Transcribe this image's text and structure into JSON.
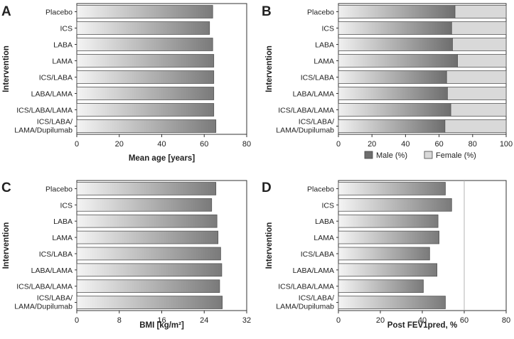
{
  "colors": {
    "bar_light": "#f2f2f2",
    "bar_dark": "#7a7a7a",
    "female": "#d9d9d9",
    "male_dark": "#6e6e6e",
    "axis": "#333333",
    "refline": "#b3b3b3"
  },
  "chart_data": [
    {
      "panel": "A",
      "type": "bar",
      "orientation": "horizontal",
      "categories": [
        "Placebo",
        "ICS",
        "LABA",
        "LAMA",
        "ICS/LABA",
        "LABA/LAMA",
        "ICS/LABA/LAMA",
        "ICS/LABA/\nLAMA/Dupilumab"
      ],
      "values": [
        64,
        62.5,
        64,
        64.5,
        64.5,
        64.5,
        64.5,
        65.5
      ],
      "xlabel": "Mean age [years]",
      "ylabel": "Intervention",
      "xlim": [
        0,
        80
      ],
      "xticks": [
        0,
        20,
        40,
        60,
        80
      ],
      "xtick_labels": [
        "0",
        "20",
        "40",
        "60",
        "80"
      ]
    },
    {
      "panel": "B",
      "type": "bar",
      "orientation": "horizontal",
      "stacked": true,
      "categories": [
        "Placebo",
        "ICS",
        "LABA",
        "LAMA",
        "ICS/LABA",
        "LABA/LAMA",
        "ICS/LABA/LAMA",
        "ICS/LABA/\nLAMA/Dupilumab"
      ],
      "series": [
        {
          "name": "Male (%)",
          "values": [
            69.5,
            67.5,
            68,
            71,
            64.5,
            65,
            67,
            63.5
          ]
        },
        {
          "name": "Female (%)",
          "values": [
            30.5,
            32.5,
            32,
            29,
            35.5,
            35,
            33,
            36.5
          ]
        }
      ],
      "xlabel": "",
      "ylabel": "Intervention",
      "xlim": [
        0,
        100
      ],
      "xticks": [
        0,
        20,
        40,
        60,
        80,
        100
      ],
      "xtick_labels": [
        "0",
        "20",
        "40",
        "60",
        "80",
        "100"
      ],
      "legend": [
        "Male (%)",
        "Female (%)"
      ]
    },
    {
      "panel": "C",
      "type": "bar",
      "orientation": "horizontal",
      "categories": [
        "Placebo",
        "ICS",
        "LABA",
        "LAMA",
        "ICS/LABA",
        "LABA/LAMA",
        "ICS/LABA/LAMA",
        "ICS/LABA/\nLAMA/Dupilumab"
      ],
      "values": [
        26.2,
        25.4,
        26.4,
        26.6,
        27.1,
        27.3,
        26.9,
        27.4
      ],
      "xlabel": "BMI [kg/m²]",
      "ylabel": "Intervention",
      "xlim": [
        0,
        32
      ],
      "xticks": [
        0,
        8,
        16,
        24,
        32
      ],
      "xtick_labels": [
        "0",
        "8",
        "16",
        "24",
        "32"
      ]
    },
    {
      "panel": "D",
      "type": "bar",
      "orientation": "horizontal",
      "categories": [
        "Placebo",
        "ICS",
        "LABA",
        "LAMA",
        "ICS/LABA",
        "LABA/LAMA",
        "ICS/LABA/LAMA",
        "ICS/LABA/\nLAMA/Dupilumab"
      ],
      "values": [
        51,
        54,
        47.5,
        48,
        43.5,
        47,
        40.5,
        51
      ],
      "xlabel": "Post FEV1pred, %",
      "ylabel": "Intervention",
      "xlim": [
        0,
        80
      ],
      "xticks": [
        0,
        20,
        40,
        60,
        80
      ],
      "xtick_labels": [
        "0",
        "20",
        "40",
        "60",
        "80"
      ],
      "reference_line": 60
    }
  ]
}
